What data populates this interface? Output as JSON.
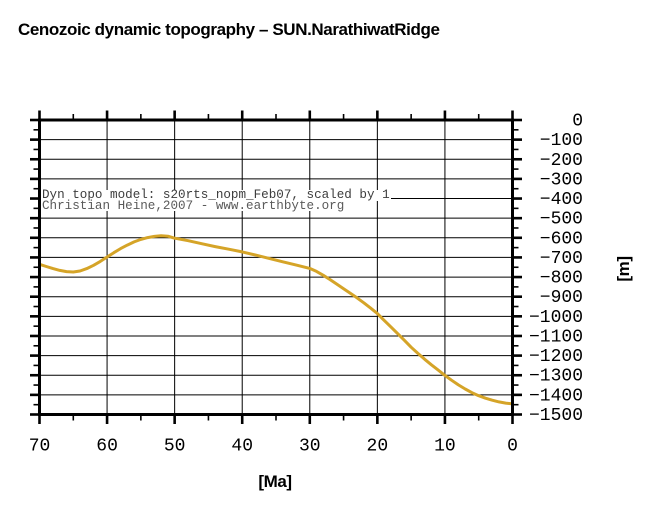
{
  "figure": {
    "title": "Cenozoic dynamic topography – SUN.NarathiwatRidge"
  },
  "annotation": {
    "line1": "Dyn topo model: s20rts_nopm_Feb07, scaled by 1",
    "line2": "Christian Heine,2007 - www.earthbyte.org"
  },
  "colors": {
    "curve": "#D5A428",
    "frame": "#000000",
    "grid": "#000000",
    "background": "#ffffff",
    "annotation_line1": "#3d3d3d",
    "annotation_line2": "#5a5a5a"
  },
  "chart_data": {
    "type": "line",
    "title": "Cenozoic dynamic topography – SUN.NarathiwatRidge",
    "xlabel": "[Ma]",
    "ylabel": "[m]",
    "grid": true,
    "annotations": [
      "Dyn topo model: s20rts_nopm_Feb07, scaled by 1",
      "Christian Heine,2007 - www.earthbyte.org"
    ],
    "x_axis": {
      "label": "[Ma]",
      "min": 0,
      "max": 70,
      "reversed": true,
      "major_tick": 10,
      "minor_tick": 5,
      "ticks": [
        70,
        60,
        50,
        40,
        30,
        20,
        10,
        0
      ],
      "tick_labels": [
        "70",
        "60",
        "50",
        "40",
        "30",
        "20",
        "10",
        "0"
      ]
    },
    "y_axis": {
      "label": "[m]",
      "min": -1500,
      "max": 0,
      "side": "right",
      "major_tick": 100,
      "minor_tick": 50,
      "ticks": [
        0,
        -100,
        -200,
        -300,
        -400,
        -500,
        -600,
        -700,
        -800,
        -900,
        -1000,
        -1100,
        -1200,
        -1300,
        -1400,
        -1500
      ],
      "tick_labels": [
        "0",
        "−100",
        "−200",
        "−300",
        "−400",
        "−500",
        "−600",
        "−700",
        "−800",
        "−900",
        "−1000",
        "−1100",
        "−1200",
        "−1300",
        "−1400",
        "−1500"
      ]
    },
    "series": [
      {
        "name": "Cenozoic dynamic topography",
        "color": "#D5A428",
        "x": [
          70,
          69,
          68,
          67,
          66,
          65,
          64,
          63,
          62,
          61,
          60,
          59,
          58,
          57,
          56,
          55,
          54,
          53,
          52,
          51,
          50,
          48,
          46,
          44,
          42,
          40,
          38,
          36,
          34,
          32,
          30,
          29,
          28,
          27,
          26,
          25,
          24,
          23,
          22,
          21,
          20,
          19,
          18,
          17,
          16,
          15,
          14,
          13,
          12,
          11,
          10,
          9,
          8,
          7,
          6,
          5,
          4,
          3,
          2,
          1,
          0
        ],
        "y": [
          -735,
          -746,
          -757,
          -766,
          -772,
          -774,
          -769,
          -757,
          -740,
          -720,
          -698,
          -676,
          -655,
          -637,
          -621,
          -608,
          -599,
          -593,
          -590,
          -592,
          -602,
          -615,
          -630,
          -645,
          -658,
          -672,
          -688,
          -705,
          -722,
          -739,
          -756,
          -771,
          -791,
          -813,
          -836,
          -859,
          -882,
          -906,
          -931,
          -958,
          -986,
          -1020,
          -1054,
          -1088,
          -1122,
          -1157,
          -1189,
          -1219,
          -1247,
          -1274,
          -1301,
          -1326,
          -1349,
          -1370,
          -1389,
          -1404,
          -1417,
          -1427,
          -1436,
          -1442,
          -1446
        ]
      }
    ]
  }
}
